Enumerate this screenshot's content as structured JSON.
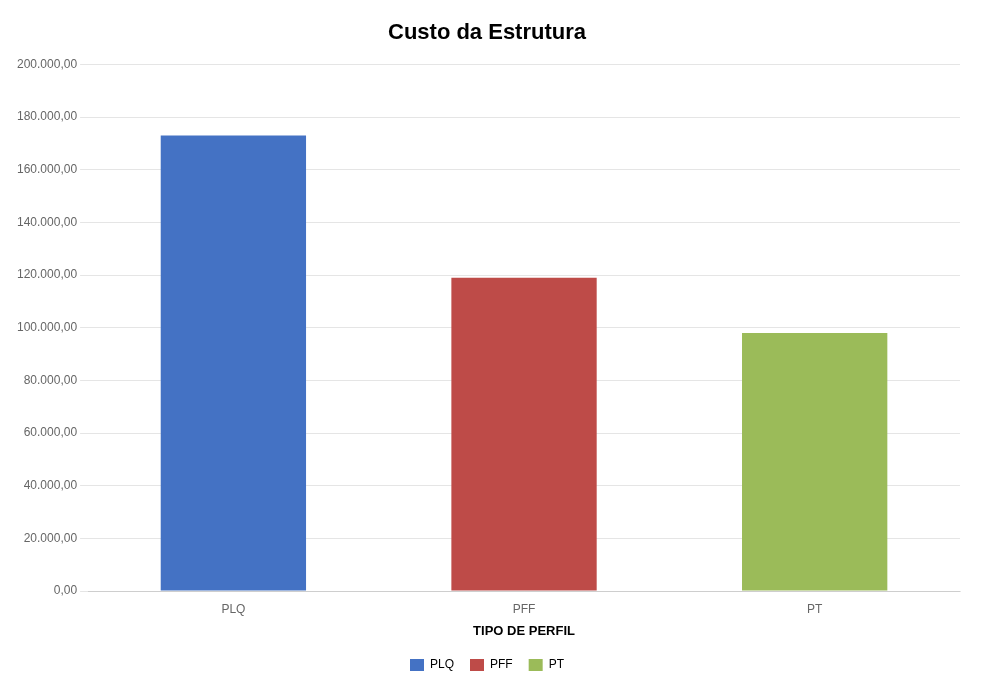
{
  "chart_data": {
    "type": "bar",
    "title": "Custo da Estrutura",
    "categories": [
      "PLQ",
      "PFF",
      "PT"
    ],
    "values": [
      173000,
      119000,
      98000
    ],
    "colors": [
      "#4472C4",
      "#BE4B48",
      "#9BBB59"
    ],
    "xlabel": "TIPO DE PERFIL",
    "ylim": [
      0,
      200000
    ],
    "yticks": [
      {
        "value": 0,
        "label": "0,00"
      },
      {
        "value": 20000,
        "label": "20.000,00"
      },
      {
        "value": 40000,
        "label": "40.000,00"
      },
      {
        "value": 60000,
        "label": "60.000,00"
      },
      {
        "value": 80000,
        "label": "80.000,00"
      },
      {
        "value": 100000,
        "label": "100.000,00"
      },
      {
        "value": 120000,
        "label": "120.000,00"
      },
      {
        "value": 140000,
        "label": "140.000,00"
      },
      {
        "value": 160000,
        "label": "160.000,00"
      },
      {
        "value": 180000,
        "label": "180.000,00"
      },
      {
        "value": 200000,
        "label": "200.000,00"
      }
    ],
    "grid": true,
    "legend": "bottom"
  }
}
